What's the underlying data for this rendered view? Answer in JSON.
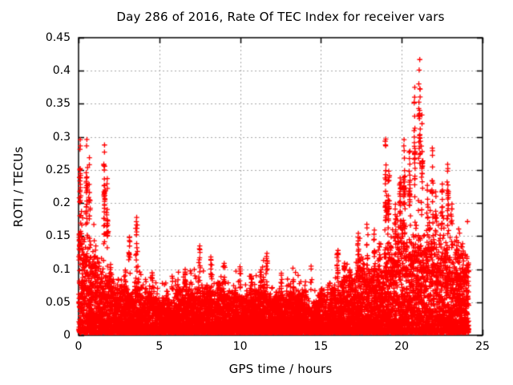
{
  "chart_data": {
    "type": "scatter",
    "title": "Day 286 of 2016, Rate Of TEC Index for receiver vars",
    "xlabel": "GPS time / hours",
    "ylabel": "ROTI / TECUs",
    "xlim": [
      0,
      25
    ],
    "ylim": [
      0,
      0.45
    ],
    "xtick_values": [
      0,
      5,
      10,
      15,
      20,
      25
    ],
    "xtick_labels": [
      "0",
      "5",
      "10",
      "15",
      "20",
      "25"
    ],
    "ytick_values": [
      0,
      0.05,
      0.1,
      0.15,
      0.2,
      0.25,
      0.3,
      0.35,
      0.4,
      0.45
    ],
    "ytick_labels": [
      "0",
      "0.05",
      "0.1",
      "0.15",
      "0.2",
      "0.25",
      "0.3",
      "0.35",
      "0.4",
      "0.45"
    ],
    "grid": true,
    "legend": "none",
    "marker": "plus",
    "colors": {
      "marker": "#ff0000",
      "grid": "#a8a8a8",
      "border": "#000000",
      "text": "#000000",
      "background": "#ffffff"
    },
    "time_range_hours": [
      0,
      24.15
    ],
    "envelope": {
      "t": [
        0.0,
        0.1,
        0.4,
        0.75,
        1.1,
        1.5,
        1.9,
        2.35,
        2.9,
        3.5,
        4.05,
        4.6,
        5.25,
        6.0,
        6.8,
        7.6,
        8.3,
        9.1,
        10.0,
        10.8,
        11.6,
        12.6,
        13.7,
        14.7,
        15.6,
        16.25,
        17.0,
        17.8,
        18.5,
        19.1,
        19.7,
        20.3,
        21.0,
        21.8,
        22.65,
        23.4,
        23.9,
        24.15
      ],
      "base": [
        0.14,
        0.135,
        0.122,
        0.115,
        0.105,
        0.1,
        0.085,
        0.06,
        0.065,
        0.075,
        0.06,
        0.055,
        0.055,
        0.06,
        0.065,
        0.07,
        0.065,
        0.06,
        0.06,
        0.06,
        0.065,
        0.055,
        0.065,
        0.05,
        0.065,
        0.08,
        0.085,
        0.09,
        0.095,
        0.12,
        0.13,
        0.15,
        0.155,
        0.13,
        0.14,
        0.115,
        0.115,
        0.11
      ]
    },
    "peaks": [
      [
        0.05,
        0.155,
        5
      ],
      [
        0.1,
        0.3,
        14
      ],
      [
        0.5,
        0.3,
        16
      ],
      [
        0.68,
        0.27,
        9
      ],
      [
        1.6,
        0.29,
        20
      ],
      [
        1.78,
        0.24,
        11
      ],
      [
        2.9,
        0.1,
        6
      ],
      [
        3.15,
        0.15,
        10
      ],
      [
        3.6,
        0.18,
        14
      ],
      [
        4.15,
        0.085,
        5
      ],
      [
        4.55,
        0.095,
        6
      ],
      [
        5.8,
        0.09,
        5
      ],
      [
        6.6,
        0.1,
        6
      ],
      [
        7.5,
        0.137,
        10
      ],
      [
        8.2,
        0.12,
        8
      ],
      [
        9.0,
        0.11,
        7
      ],
      [
        10.0,
        0.105,
        7
      ],
      [
        10.7,
        0.09,
        5
      ],
      [
        11.3,
        0.1,
        6
      ],
      [
        11.65,
        0.125,
        9
      ],
      [
        12.55,
        0.095,
        7
      ],
      [
        13.3,
        0.085,
        5
      ],
      [
        14.4,
        0.105,
        4
      ],
      [
        15.0,
        0.07,
        3
      ],
      [
        16.05,
        0.13,
        12
      ],
      [
        16.45,
        0.11,
        8
      ],
      [
        16.8,
        0.1,
        7
      ],
      [
        17.3,
        0.155,
        10
      ],
      [
        17.85,
        0.17,
        10
      ],
      [
        18.3,
        0.16,
        9
      ],
      [
        18.6,
        0.14,
        8
      ],
      [
        19.0,
        0.3,
        18
      ],
      [
        19.2,
        0.25,
        12
      ],
      [
        19.6,
        0.2,
        12
      ],
      [
        19.9,
        0.24,
        12
      ],
      [
        20.15,
        0.3,
        16
      ],
      [
        20.5,
        0.28,
        14
      ],
      [
        20.8,
        0.377,
        16
      ],
      [
        21.1,
        0.42,
        18
      ],
      [
        21.25,
        0.335,
        12
      ],
      [
        21.6,
        0.23,
        10
      ],
      [
        21.9,
        0.285,
        8
      ],
      [
        22.1,
        0.22,
        9
      ],
      [
        22.5,
        0.23,
        10
      ],
      [
        22.85,
        0.26,
        14
      ],
      [
        23.1,
        0.2,
        8
      ],
      [
        23.4,
        0.15,
        6
      ],
      [
        23.75,
        0.14,
        5
      ]
    ],
    "seed": 20161012
  }
}
